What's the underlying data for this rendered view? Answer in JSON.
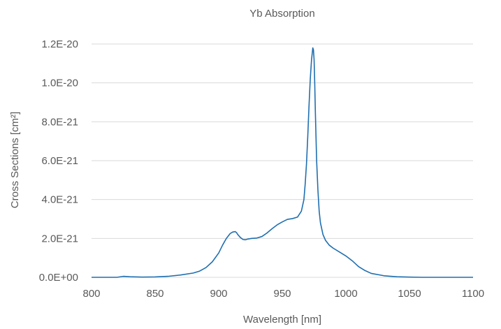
{
  "chart_data": {
    "type": "line",
    "title": "Yb Absorption",
    "xlabel": "Wavelength [nm]",
    "ylabel": "Cross Sections [cm²]",
    "xlim": [
      800,
      1100
    ],
    "ylim": [
      0,
      1.2e-20
    ],
    "x_ticks": [
      800,
      850,
      900,
      950,
      1000,
      1050,
      1100
    ],
    "x_tick_labels": [
      "800",
      "850",
      "900",
      "950",
      "1000",
      "1050",
      "1100"
    ],
    "y_ticks": [
      0,
      2e-21,
      4e-21,
      6e-21,
      8e-21,
      1e-20,
      1.2e-20
    ],
    "y_tick_labels": [
      "0.0E+00",
      "2.0E-21",
      "4.0E-21",
      "6.0E-21",
      "8.0E-21",
      "1.0E-20",
      "1.2E-20"
    ],
    "grid": true,
    "legend": "none",
    "series_color": "#1f6fb0",
    "series": [
      {
        "x": [
          800,
          820,
          825,
          830,
          840,
          850,
          860,
          870,
          880,
          885,
          890,
          895,
          900,
          903,
          906,
          909,
          911,
          913,
          914,
          915,
          917,
          919,
          921,
          923,
          926,
          930,
          934,
          938,
          942,
          946,
          950,
          954,
          958,
          962,
          965,
          967,
          968,
          969,
          970,
          971,
          972,
          973,
          974,
          974.5,
          975,
          975.5,
          976,
          977,
          978,
          979,
          980,
          982,
          984,
          987,
          990,
          995,
          1000,
          1005,
          1010,
          1015,
          1020,
          1030,
          1040,
          1050,
          1060,
          1070,
          1080,
          1090,
          1100
        ],
        "y": [
          0,
          0,
          5e-23,
          3e-23,
          1e-23,
          2e-23,
          5e-23,
          1.2e-22,
          2.2e-22,
          3.2e-22,
          5e-22,
          8e-22,
          1.25e-21,
          1.65e-21,
          2e-21,
          2.25e-21,
          2.33e-21,
          2.35e-21,
          2.3e-21,
          2.2e-21,
          2.05e-21,
          1.95e-21,
          1.93e-21,
          1.97e-21,
          2e-21,
          2.02e-21,
          2.1e-21,
          2.28e-21,
          2.5e-21,
          2.7e-21,
          2.85e-21,
          2.98e-21,
          3.02e-21,
          3.1e-21,
          3.4e-21,
          4e-21,
          4.8e-21,
          5.8e-21,
          7.2e-21,
          8.8e-21,
          1.02e-20,
          1.12e-20,
          1.18e-20,
          1.17e-20,
          1.12e-20,
          1e-20,
          8.5e-21,
          6e-21,
          4.5e-21,
          3.4e-21,
          2.8e-21,
          2.2e-21,
          1.9e-21,
          1.65e-21,
          1.5e-21,
          1.3e-21,
          1.1e-21,
          8.5e-22,
          5.5e-22,
          3.5e-22,
          2e-22,
          8e-23,
          3e-23,
          1e-23,
          0,
          0,
          0,
          0,
          0
        ]
      }
    ]
  }
}
